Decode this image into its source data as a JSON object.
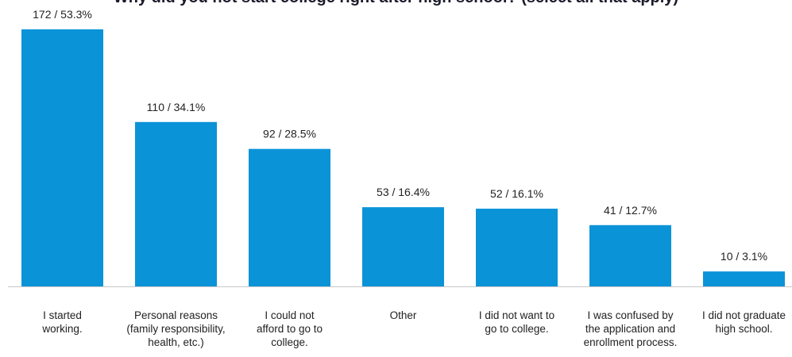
{
  "chart_data": {
    "type": "bar",
    "title": "Why did you not start college right after high school? (select all that apply)",
    "xlabel": "",
    "ylabel": "",
    "ylim": [
      0,
      180
    ],
    "grid": false,
    "legend": "none",
    "bar_color": "#0b93d8",
    "axis_color": "#c8c8c8",
    "categories": [
      [
        "I started",
        "working."
      ],
      [
        "Personal reasons",
        "(family responsibility,",
        "health, etc.)"
      ],
      [
        "I could not",
        "afford to go to",
        "college."
      ],
      [
        "Other"
      ],
      [
        "I did not want to",
        "go to college."
      ],
      [
        "I was confused by",
        "the application and",
        "enrollment process."
      ],
      [
        "I did not graduate",
        "high school."
      ]
    ],
    "values": [
      172,
      110,
      92,
      53,
      52,
      41,
      10
    ],
    "percents": [
      53.3,
      34.1,
      28.5,
      16.4,
      16.1,
      12.7,
      3.1
    ],
    "data_labels": [
      "172 / 53.3%",
      "110 / 34.1%",
      "92 / 28.5%",
      "53 / 16.4%",
      "52 / 16.1%",
      "41 / 12.7%",
      "10 / 3.1%"
    ]
  }
}
